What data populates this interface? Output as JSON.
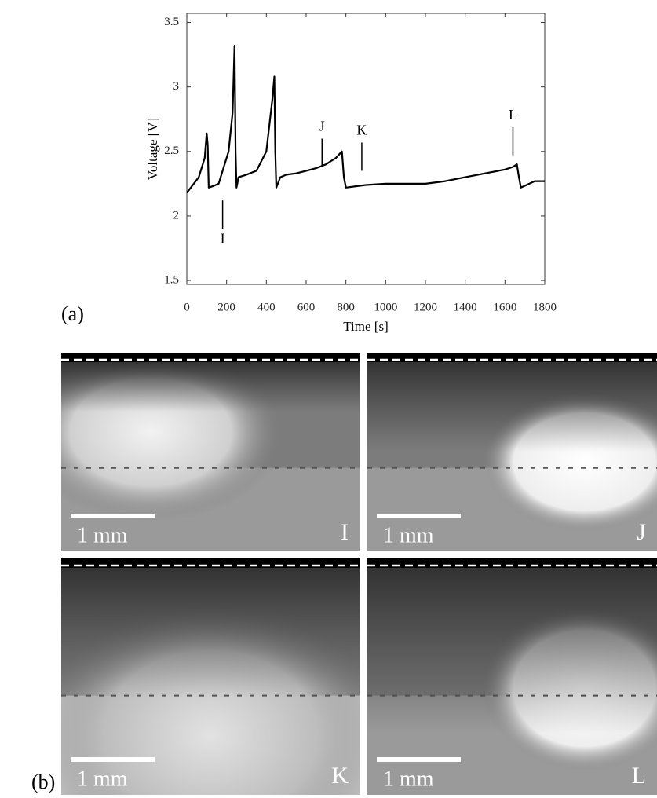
{
  "chart_data": {
    "type": "line",
    "xlabel": "Time [s]",
    "ylabel": "Voltage [V]",
    "x": [
      0,
      20,
      60,
      90,
      100,
      105,
      110,
      130,
      160,
      180,
      210,
      230,
      240,
      245,
      250,
      260,
      300,
      350,
      400,
      430,
      440,
      445,
      450,
      470,
      500,
      550,
      600,
      650,
      700,
      750,
      780,
      790,
      800,
      850,
      900,
      1000,
      1100,
      1200,
      1300,
      1400,
      1500,
      1600,
      1640,
      1660,
      1670,
      1680,
      1750,
      1800
    ],
    "values": [
      2.18,
      2.22,
      2.3,
      2.45,
      2.64,
      2.55,
      2.22,
      2.23,
      2.25,
      2.35,
      2.5,
      2.8,
      3.32,
      2.5,
      2.22,
      2.3,
      2.32,
      2.35,
      2.5,
      2.9,
      3.08,
      2.5,
      2.22,
      2.3,
      2.32,
      2.33,
      2.35,
      2.37,
      2.4,
      2.45,
      2.5,
      2.3,
      2.22,
      2.23,
      2.24,
      2.25,
      2.25,
      2.25,
      2.27,
      2.3,
      2.33,
      2.36,
      2.38,
      2.4,
      2.3,
      2.22,
      2.27,
      2.27
    ],
    "color": "#000000",
    "xlim": [
      0,
      1800
    ],
    "xticks": [
      0,
      200,
      400,
      600,
      800,
      1000,
      1200,
      1400,
      1600,
      1800
    ],
    "ylim": [
      1.47,
      3.57
    ],
    "yticks": [
      1.5,
      2,
      2.5,
      3,
      3.5
    ],
    "annotations": [
      {
        "text": "I",
        "x": 180,
        "y": 2.12,
        "side": "below"
      },
      {
        "text": "J",
        "x": 680,
        "y": 2.38,
        "side": "above"
      },
      {
        "text": "K",
        "x": 880,
        "y": 2.35,
        "side": "above"
      },
      {
        "text": "L",
        "x": 1640,
        "y": 2.47,
        "side": "above"
      }
    ]
  },
  "figure": {
    "label_a": "(a)",
    "label_b": "(b)",
    "panels": [
      {
        "label": "I",
        "scale_bar": "1 mm"
      },
      {
        "label": "J",
        "scale_bar": "1 mm"
      },
      {
        "label": "K",
        "scale_bar": "1 mm"
      },
      {
        "label": "L",
        "scale_bar": "1 mm"
      }
    ]
  }
}
